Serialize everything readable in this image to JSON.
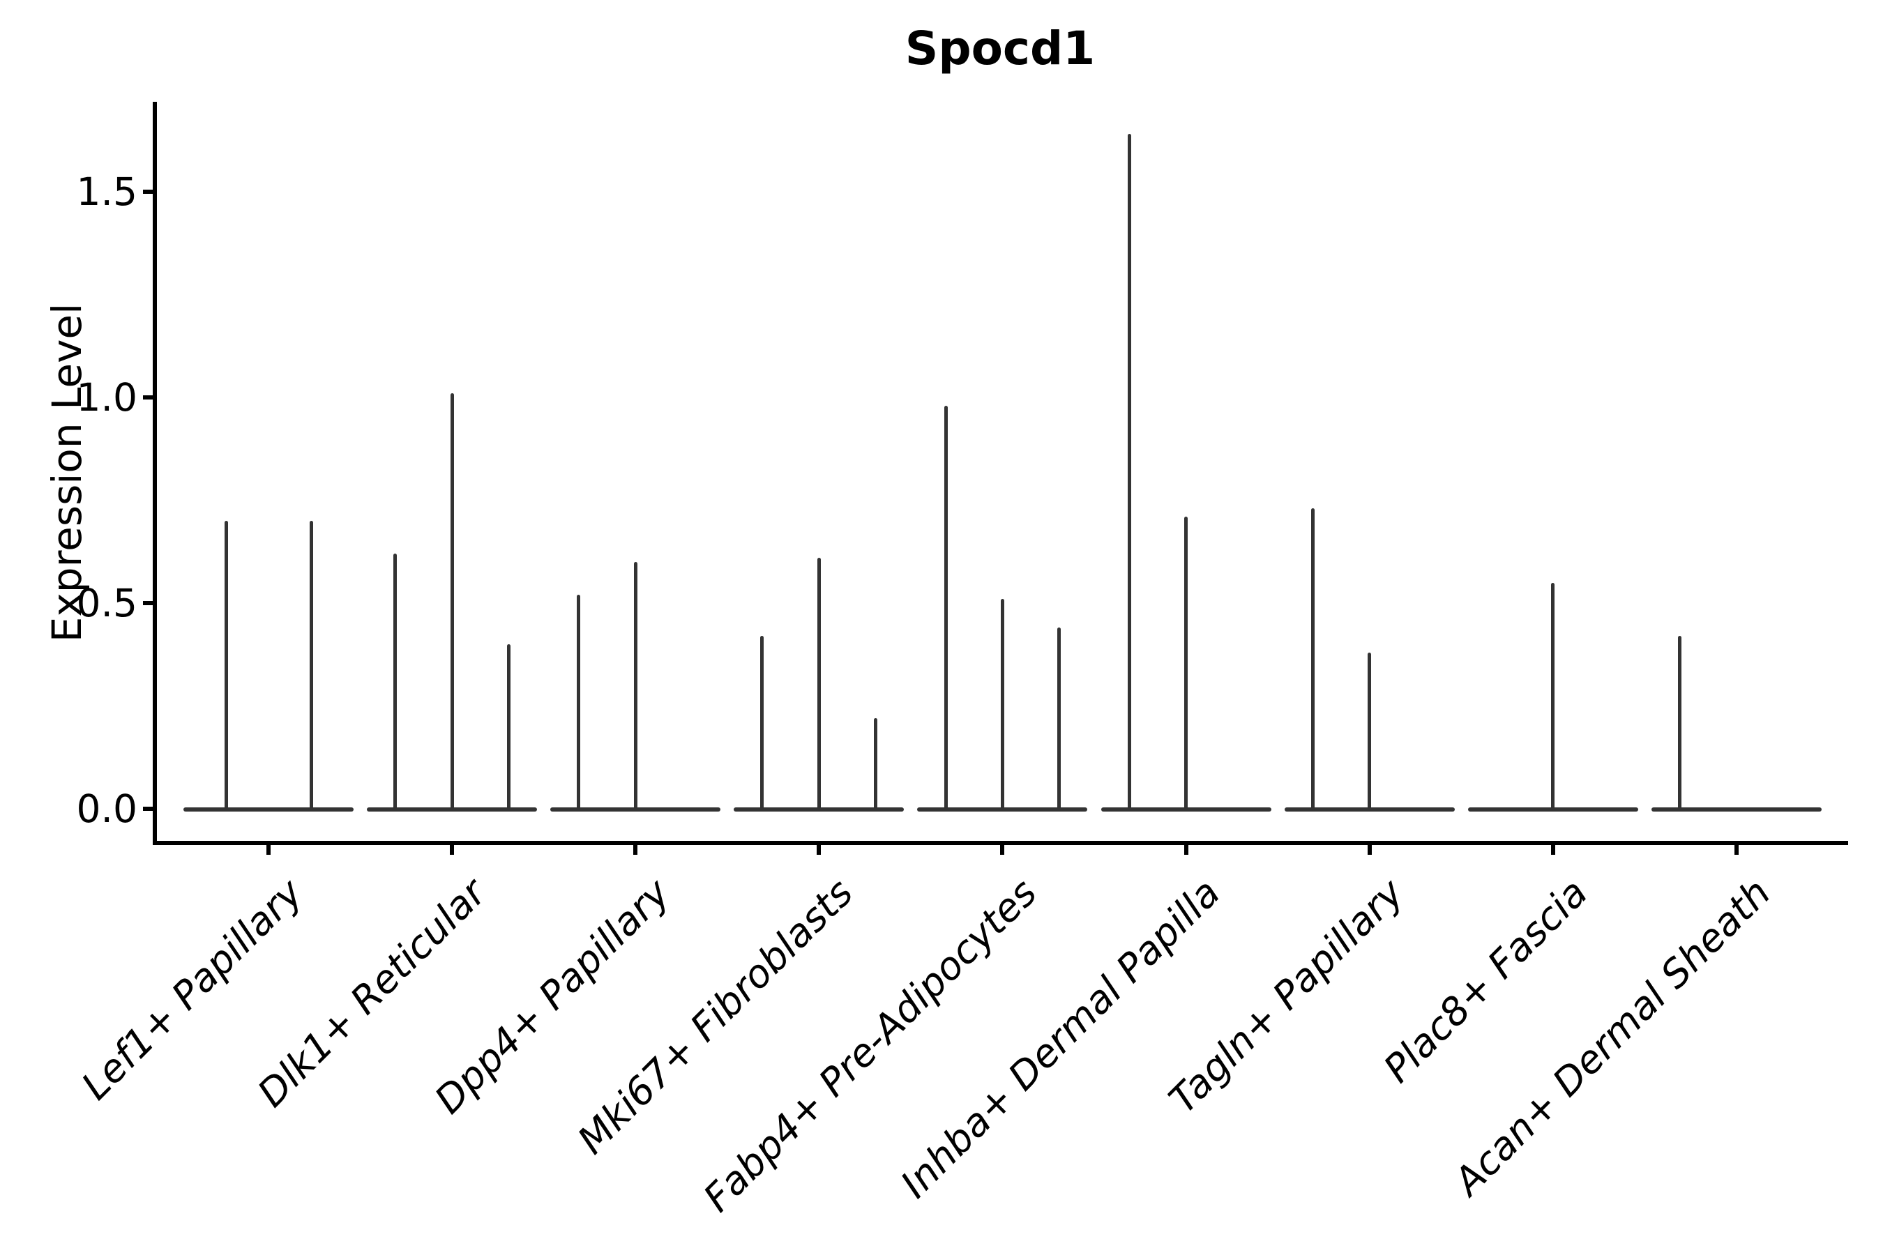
{
  "figure": {
    "background": "#ffffff",
    "axis_color": "#000000",
    "violin_color": "#333333"
  },
  "chart_data": {
    "type": "violin",
    "title": "Spocd1",
    "xlabel": "",
    "ylabel": "Expression Level",
    "ylim": [
      -0.09,
      1.72
    ],
    "ytick_values": [
      0.0,
      0.5,
      1.0,
      1.5
    ],
    "ytick_labels": [
      "0.0",
      "0.5",
      "1.0",
      "1.5"
    ],
    "grid": false,
    "legend": "none",
    "categories": [
      "Lef1+ Papillary",
      "Dlk1+ Reticular",
      "Dpp4+ Papillary",
      "Mki67+ Fibroblasts",
      "Fabp4+ Pre-Adipocytes",
      "Inhba+ Dermal Papilla",
      "Tagln+ Papillary",
      "Plac8+ Fascia",
      "Acan+ Dermal Sheath"
    ],
    "violins": [
      {
        "category": "Lef1+ Papillary",
        "spike_max_expression": [
          0.7,
          0.7
        ]
      },
      {
        "category": "Dlk1+ Reticular",
        "spike_max_expression": [
          0.62,
          1.01,
          0.4
        ]
      },
      {
        "category": "Dpp4+ Papillary",
        "spike_max_expression": [
          0.52,
          0.6,
          0.0
        ]
      },
      {
        "category": "Mki67+ Fibroblasts",
        "spike_max_expression": [
          0.42,
          0.61,
          0.22
        ]
      },
      {
        "category": "Fabp4+ Pre-Adipocytes",
        "spike_max_expression": [
          0.98,
          0.51,
          0.44
        ]
      },
      {
        "category": "Inhba+ Dermal Papilla",
        "spike_max_expression": [
          1.64,
          0.71,
          0.0
        ]
      },
      {
        "category": "Tagln+ Papillary",
        "spike_max_expression": [
          0.73,
          0.38,
          0.0
        ]
      },
      {
        "category": "Plac8+ Fascia",
        "spike_max_expression": [
          0.55
        ]
      },
      {
        "category": "Acan+ Dermal Sheath",
        "spike_max_expression": [
          0.42,
          0.0,
          0.0
        ]
      }
    ]
  }
}
